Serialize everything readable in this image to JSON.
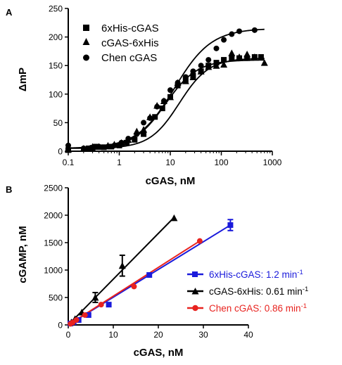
{
  "chart_data": [
    {
      "panel_label": "A",
      "type": "scatter",
      "xscale": "log",
      "xlim": [
        0.1,
        1000
      ],
      "ylim": [
        0,
        250
      ],
      "xlabel": "cGAS, nM",
      "ylabel": "ΔmP",
      "xticks": [
        0.1,
        1,
        10,
        100,
        1000
      ],
      "xtick_labels": [
        "0.1",
        "1",
        "10",
        "100",
        "1000"
      ],
      "yticks": [
        0,
        50,
        100,
        150,
        200,
        250
      ],
      "ytick_labels": [
        "0",
        "50",
        "100",
        "150",
        "200",
        "250"
      ],
      "legend_position": "top-left",
      "series": [
        {
          "name": "6xHis-cGAS",
          "marker": "square",
          "x": [
            0.1,
            0.25,
            0.3,
            0.35,
            0.5,
            0.7,
            1,
            1.4,
            2,
            3,
            5,
            7,
            10,
            14,
            20,
            28,
            40,
            56,
            80,
            112,
            160,
            225,
            320,
            450,
            600
          ],
          "y": [
            2,
            5,
            6,
            8,
            7,
            8,
            10,
            15,
            20,
            30,
            60,
            75,
            95,
            115,
            125,
            132,
            140,
            150,
            155,
            160,
            163,
            163,
            163,
            165,
            165
          ],
          "fit": {
            "bottom": 5,
            "top": 163,
            "ec50": 15,
            "hill": 1.5
          }
        },
        {
          "name": "cGAS-6xHis",
          "marker": "triangle",
          "x": [
            0.1,
            0.2,
            0.3,
            0.4,
            0.6,
            0.8,
            1.1,
            1.5,
            2.2,
            3,
            4,
            5.5,
            7.5,
            10,
            14,
            20,
            28,
            40,
            56,
            80,
            112,
            160,
            225,
            320,
            450,
            700
          ],
          "y": [
            3,
            5,
            8,
            8,
            10,
            12,
            15,
            20,
            35,
            38,
            60,
            80,
            88,
            95,
            120,
            123,
            130,
            140,
            148,
            150,
            152,
            172,
            165,
            170,
            165,
            155
          ],
          "fit": {
            "bottom": 5,
            "top": 160,
            "ec50": 8,
            "hill": 1.4
          }
        },
        {
          "name": "Chen cGAS",
          "marker": "circle",
          "x": [
            0.1,
            0.2,
            0.3,
            0.4,
            0.6,
            0.8,
            1.1,
            1.5,
            2.2,
            3,
            4,
            5.5,
            7.5,
            10,
            14,
            20,
            28,
            40,
            56,
            80,
            112,
            160,
            225,
            450
          ],
          "y": [
            10,
            5,
            5,
            8,
            8,
            10,
            15,
            22,
            30,
            50,
            58,
            78,
            88,
            107,
            120,
            130,
            140,
            150,
            160,
            180,
            195,
            205,
            210,
            212
          ],
          "fit": {
            "bottom": 5,
            "top": 215,
            "ec50": 12,
            "hill": 1.2
          }
        }
      ]
    },
    {
      "panel_label": "B",
      "type": "scatter",
      "xlim": [
        0,
        40
      ],
      "ylim": [
        0,
        2500
      ],
      "xlabel": "cGAS, nM",
      "ylabel": "cGAMP, nM",
      "xticks": [
        0,
        10,
        20,
        30,
        40
      ],
      "xtick_labels": [
        "0",
        "10",
        "20",
        "30",
        "40"
      ],
      "yticks": [
        0,
        500,
        1000,
        1500,
        2000,
        2500
      ],
      "ytick_labels": [
        "0",
        "500",
        "1000",
        "1500",
        "2000",
        "2500"
      ],
      "legend_position": "bottom-right",
      "series": [
        {
          "name": "6xHis-cGAS",
          "rate_label": "6xHis-cGAS: 1.2 min",
          "color": "#1a1adb",
          "marker": "square",
          "x": [
            0.5,
            1.2,
            2.3,
            4.5,
            9,
            18,
            36
          ],
          "y": [
            25,
            50,
            90,
            180,
            370,
            910,
            1820
          ],
          "err": [
            0,
            0,
            0,
            0,
            0,
            0,
            100
          ],
          "line": [
            [
              0,
              0
            ],
            [
              36,
              1820
            ]
          ]
        },
        {
          "name": "cGAS-6xHis",
          "rate_label": "cGAS-6xHis:  0.61 min",
          "color": "#000000",
          "marker": "triangle",
          "x": [
            0.7,
            1.5,
            3,
            6,
            12,
            23.5
          ],
          "y": [
            50,
            110,
            230,
            500,
            1080,
            1950
          ],
          "err": [
            0,
            0,
            0,
            90,
            190,
            0
          ],
          "line": [
            [
              0,
              0
            ],
            [
              23.5,
              1960
            ]
          ]
        },
        {
          "name": "Chen cGAS",
          "rate_label": "Chen cGAS:  0.86 min",
          "color": "#e8231f",
          "marker": "circle",
          "x": [
            0.5,
            1,
            1.8,
            3.7,
            7.3,
            14.6,
            29.2
          ],
          "y": [
            20,
            45,
            90,
            180,
            370,
            700,
            1530
          ],
          "err": [
            0,
            0,
            0,
            0,
            0,
            0,
            0
          ],
          "line": [
            [
              0,
              0
            ],
            [
              29.2,
              1530
            ]
          ]
        }
      ],
      "rate_unit_exponent": "-1"
    }
  ]
}
